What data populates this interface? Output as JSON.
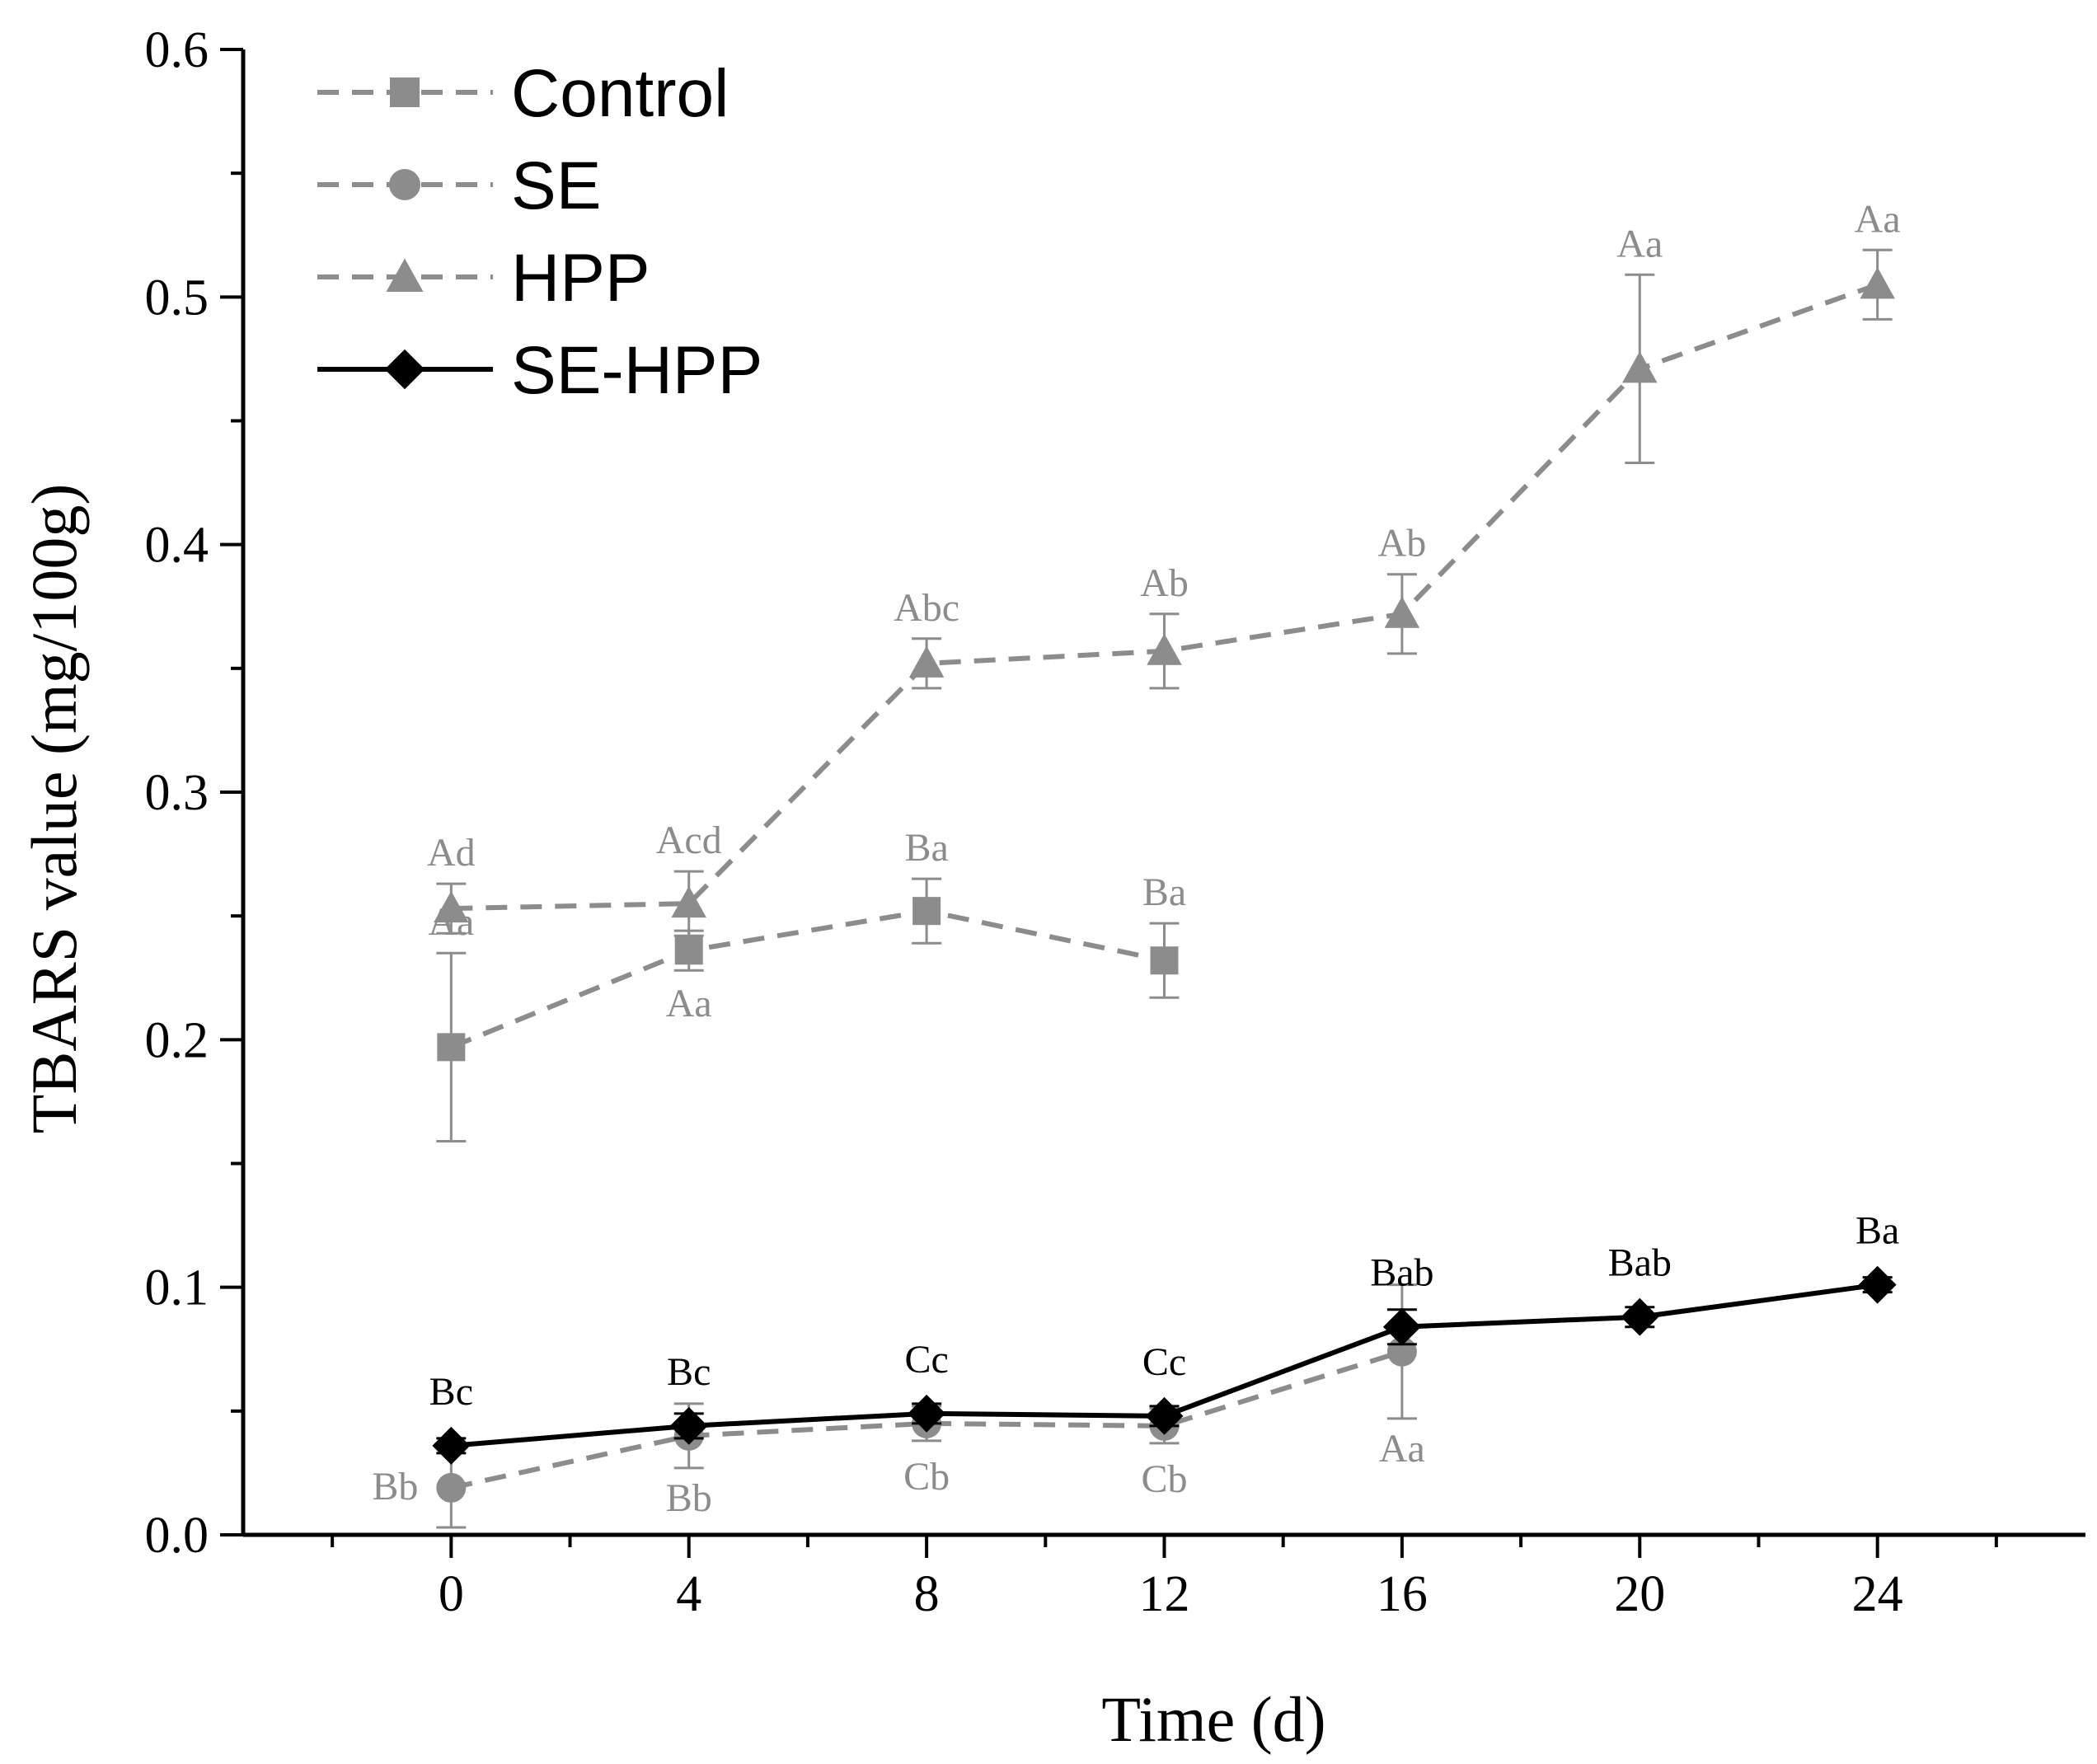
{
  "chart_data": {
    "type": "line",
    "title": "",
    "xlabel": "Time (d)",
    "ylabel": "TBARS value (mg/100g)",
    "x": [
      0,
      4,
      8,
      12,
      16,
      20,
      24
    ],
    "xlim": [
      -3.5,
      27.5
    ],
    "ylim": [
      0.0,
      0.6
    ],
    "x_ticks": [
      "0",
      "4",
      "8",
      "12",
      "16",
      "20",
      "24"
    ],
    "y_ticks": [
      "0.0",
      "0.1",
      "0.2",
      "0.3",
      "0.4",
      "0.5",
      "0.6"
    ],
    "legend_position": "top-left",
    "grid": false,
    "series": [
      {
        "name": "Control",
        "marker": "square",
        "line": "dashed",
        "color": "#8c8c8c",
        "x": [
          0,
          4,
          8,
          12
        ],
        "values": [
          0.197,
          0.236,
          0.252,
          0.232
        ],
        "errors": [
          0.038,
          0.008,
          0.013,
          0.015
        ],
        "labels": [
          {
            "text": "Aa",
            "pos": "above"
          },
          {
            "text": "Aa",
            "pos": "below"
          },
          {
            "text": "Ba",
            "pos": "above"
          },
          {
            "text": "Ba",
            "pos": "above"
          }
        ]
      },
      {
        "name": "SE",
        "marker": "circle",
        "line": "dashed",
        "color": "#8c8c8c",
        "x": [
          0,
          4,
          8,
          12,
          16
        ],
        "values": [
          0.019,
          0.04,
          0.045,
          0.044,
          0.074
        ],
        "errors": [
          0.016,
          0.013,
          0.007,
          0.007,
          0.027
        ],
        "labels": [
          {
            "text": "Bb",
            "pos": "left"
          },
          {
            "text": "Bb",
            "pos": "below"
          },
          {
            "text": "Cb",
            "pos": "below"
          },
          {
            "text": "Cb",
            "pos": "below"
          },
          {
            "text": "Aa",
            "pos": "below"
          }
        ]
      },
      {
        "name": "HPP",
        "marker": "triangle",
        "line": "dashed",
        "color": "#8c8c8c",
        "x": [
          0,
          4,
          8,
          12,
          16,
          20,
          24
        ],
        "values": [
          0.253,
          0.255,
          0.352,
          0.357,
          0.372,
          0.471,
          0.505
        ],
        "errors": [
          0.01,
          0.013,
          0.01,
          0.015,
          0.016,
          0.038,
          0.014
        ],
        "labels": [
          {
            "text": "Ad",
            "pos": "above"
          },
          {
            "text": "Acd",
            "pos": "above"
          },
          {
            "text": "Abc",
            "pos": "above"
          },
          {
            "text": "Ab",
            "pos": "above"
          },
          {
            "text": "Ab",
            "pos": "above"
          },
          {
            "text": "Aa",
            "pos": "above"
          },
          {
            "text": "Aa",
            "pos": "above"
          }
        ]
      },
      {
        "name": "SE-HPP",
        "marker": "diamond",
        "line": "solid",
        "color": "#000000",
        "x": [
          0,
          4,
          8,
          12,
          16,
          20,
          24
        ],
        "values": [
          0.036,
          0.044,
          0.049,
          0.048,
          0.084,
          0.088,
          0.101
        ],
        "errors": [
          0.003,
          0.005,
          0.004,
          0.004,
          0.007,
          0.004,
          0.003
        ],
        "labels": [
          {
            "text": "Bc",
            "pos": "above"
          },
          {
            "text": "Bc",
            "pos": "above"
          },
          {
            "text": "Cc",
            "pos": "above"
          },
          {
            "text": "Cc",
            "pos": "above"
          },
          {
            "text": "Bab",
            "pos": "above"
          },
          {
            "text": "Bab",
            "pos": "above"
          },
          {
            "text": "Ba",
            "pos": "above"
          }
        ]
      }
    ]
  }
}
